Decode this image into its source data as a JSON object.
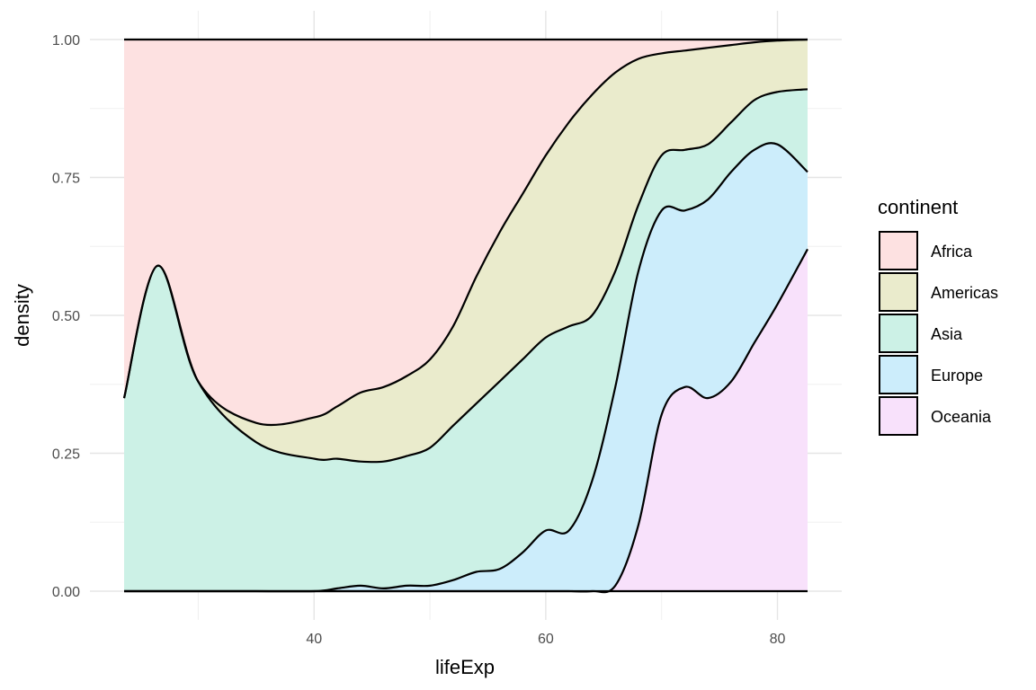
{
  "chart_data": {
    "type": "area",
    "stacked": true,
    "position": "fill",
    "xlabel": "lifeExp",
    "ylabel": "density",
    "xlim": [
      23.6,
      82.6
    ],
    "ylim": [
      0,
      1
    ],
    "x_ticks": [
      40,
      60,
      80
    ],
    "x_tick_labels": [
      "40",
      "60",
      "80"
    ],
    "y_ticks": [
      0,
      0.25,
      0.5,
      0.75,
      1
    ],
    "y_tick_labels": [
      "0.00",
      "0.25",
      "0.50",
      "0.75",
      "1.00"
    ],
    "grid": true,
    "legend": {
      "title": "continent",
      "placement": "right"
    },
    "x": [
      23.6,
      26.5,
      30,
      35,
      40,
      42,
      44,
      46,
      48,
      50,
      52,
      54,
      56,
      58,
      60,
      62,
      64,
      66,
      68,
      70,
      72,
      74,
      76,
      78,
      80,
      82.6
    ],
    "cumulative_boundaries": [
      {
        "name": "Oceania",
        "color": "#f8e1fb",
        "values": [
          0,
          0,
          0,
          0,
          0,
          0,
          0,
          0,
          0,
          0,
          0,
          0,
          0,
          0,
          0,
          0,
          0,
          0.01,
          0.12,
          0.32,
          0.37,
          0.35,
          0.38,
          0.45,
          0.52,
          0.62
        ]
      },
      {
        "name": "Europe",
        "color": "#ccedfb",
        "values": [
          0,
          0,
          0,
          0,
          0,
          0.005,
          0.01,
          0.005,
          0.01,
          0.01,
          0.02,
          0.035,
          0.04,
          0.07,
          0.11,
          0.11,
          0.2,
          0.37,
          0.58,
          0.69,
          0.69,
          0.71,
          0.76,
          0.8,
          0.81,
          0.76
        ]
      },
      {
        "name": "Asia",
        "color": "#ccf1e6",
        "values": [
          0.35,
          0.59,
          0.38,
          0.27,
          0.24,
          0.24,
          0.235,
          0.235,
          0.245,
          0.26,
          0.3,
          0.34,
          0.38,
          0.42,
          0.46,
          0.48,
          0.5,
          0.58,
          0.7,
          0.79,
          0.8,
          0.81,
          0.85,
          0.89,
          0.905,
          0.91
        ]
      },
      {
        "name": "Americas",
        "color": "#eaebcc",
        "values": [
          0.35,
          0.59,
          0.38,
          0.305,
          0.315,
          0.335,
          0.36,
          0.37,
          0.39,
          0.42,
          0.48,
          0.57,
          0.65,
          0.72,
          0.79,
          0.85,
          0.9,
          0.94,
          0.965,
          0.975,
          0.98,
          0.985,
          0.99,
          0.995,
          0.998,
          1.0
        ]
      },
      {
        "name": "Africa",
        "color": "#fde1e1",
        "values": [
          1,
          1,
          1,
          1,
          1,
          1,
          1,
          1,
          1,
          1,
          1,
          1,
          1,
          1,
          1,
          1,
          1,
          1,
          1,
          1,
          1,
          1,
          1,
          1,
          1,
          1
        ]
      }
    ],
    "legend_order": [
      "Africa",
      "Americas",
      "Asia",
      "Europe",
      "Oceania"
    ]
  }
}
